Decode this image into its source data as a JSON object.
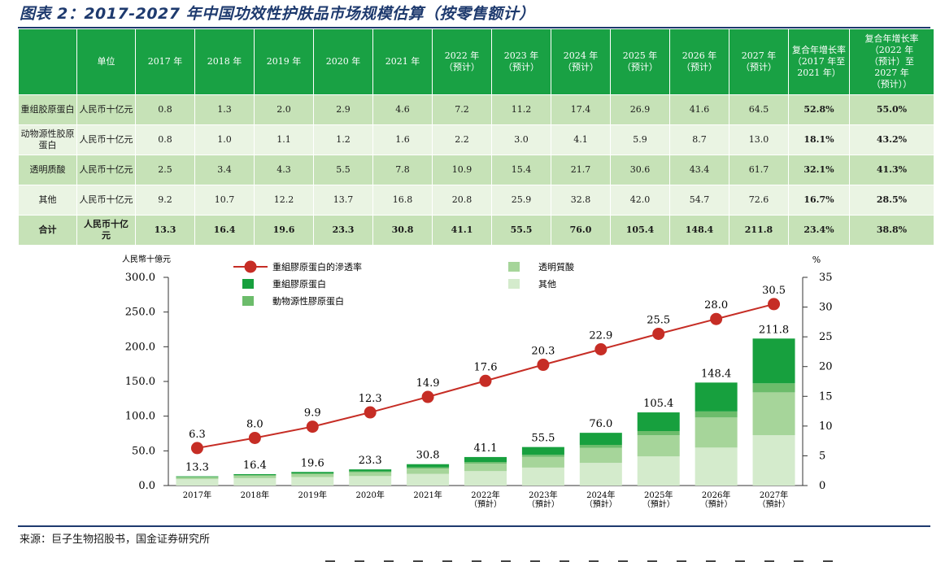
{
  "title": "图表 2：2017-2027 年中国功效性护肤品市场规模估算（按零售额计）",
  "table": {
    "headers": [
      "",
      "单位",
      "2017 年",
      "2018 年",
      "2019 年",
      "2020 年",
      "2021 年",
      "2022 年\n（预计）",
      "2023 年\n（预计）",
      "2024 年\n（预计）",
      "2025 年\n（预计）",
      "2026 年\n（预计）",
      "2027 年\n（预计）",
      "复合年增长率\n（2017 年至\n2021 年）",
      "复合年增长率\n（2022 年\n（预计）至\n2027 年\n（预计））"
    ],
    "rows": [
      {
        "name": "重组胶原蛋白",
        "unit": "人民币十亿元",
        "values": [
          "0.8",
          "1.3",
          "2.0",
          "2.9",
          "4.6",
          "7.2",
          "11.2",
          "17.4",
          "26.9",
          "41.6",
          "64.5"
        ],
        "cagr1": "52.8%",
        "cagr2": "55.0%"
      },
      {
        "name": "动物源性胶原\n蛋白",
        "unit": "人民币十亿元",
        "values": [
          "0.8",
          "1.0",
          "1.1",
          "1.2",
          "1.6",
          "2.2",
          "3.0",
          "4.1",
          "5.9",
          "8.7",
          "13.0"
        ],
        "cagr1": "18.1%",
        "cagr2": "43.2%"
      },
      {
        "name": "透明质酸",
        "unit": "人民币十亿元",
        "values": [
          "2.5",
          "3.4",
          "4.3",
          "5.5",
          "7.8",
          "10.9",
          "15.4",
          "21.7",
          "30.6",
          "43.4",
          "61.7"
        ],
        "cagr1": "32.1%",
        "cagr2": "41.3%"
      },
      {
        "name": "其他",
        "unit": "人民币十亿元",
        "values": [
          "9.2",
          "10.7",
          "12.2",
          "13.7",
          "16.8",
          "20.8",
          "25.9",
          "32.8",
          "42.0",
          "54.7",
          "72.6"
        ],
        "cagr1": "16.7%",
        "cagr2": "28.5%"
      },
      {
        "name": "合计",
        "unit": "人民币十亿\n元",
        "values": [
          "13.3",
          "16.4",
          "19.6",
          "23.3",
          "30.8",
          "41.1",
          "55.5",
          "76.0",
          "105.4",
          "148.4",
          "211.8"
        ],
        "cagr1": "23.4%",
        "cagr2": "38.8%"
      }
    ]
  },
  "chart_data": {
    "type": "bar",
    "stacked": true,
    "categories": [
      "2017年",
      "2018年",
      "2019年",
      "2020年",
      "2021年",
      "2022年\n（預計）",
      "2023年\n（預計）",
      "2024年\n（預計）",
      "2025年\n（預計）",
      "2026年\n（預計）",
      "2027年\n（預計）"
    ],
    "series": [
      {
        "name": "其他",
        "color": "#d4ebcc",
        "values": [
          9.2,
          10.7,
          12.2,
          13.7,
          16.8,
          20.8,
          25.9,
          32.8,
          42.0,
          54.7,
          72.6
        ]
      },
      {
        "name": "透明質酸",
        "color": "#a6d59a",
        "values": [
          2.5,
          3.4,
          4.3,
          5.5,
          7.8,
          10.9,
          15.4,
          21.7,
          30.6,
          43.4,
          61.7
        ]
      },
      {
        "name": "動物源性膠原蛋白",
        "color": "#6cbc6b",
        "values": [
          0.8,
          1.0,
          1.1,
          1.2,
          1.6,
          2.2,
          3.0,
          4.1,
          5.9,
          8.7,
          13.0
        ]
      },
      {
        "name": "重組膠原蛋白",
        "color": "#17a03e",
        "values": [
          0.8,
          1.3,
          2.0,
          2.9,
          4.6,
          7.2,
          11.2,
          17.4,
          26.9,
          41.6,
          64.5
        ]
      }
    ],
    "totals": [
      13.3,
      16.4,
      19.6,
      23.3,
      30.8,
      41.1,
      55.5,
      76.0,
      105.4,
      148.4,
      211.8
    ],
    "line": {
      "name": "重組膠原蛋白的滲透率",
      "color": "#c62d25",
      "axis": "right",
      "values": [
        6.3,
        8.0,
        9.9,
        12.3,
        14.9,
        17.6,
        20.3,
        22.9,
        25.5,
        28.0,
        30.5
      ]
    },
    "ylabel_left": "人民幣十億元",
    "ylabel_right": "%",
    "ylim_left": [
      0,
      300
    ],
    "yticks_left": [
      "0.0",
      "50.0",
      "100.0",
      "150.0",
      "200.0",
      "250.0",
      "300.0"
    ],
    "ylim_right": [
      0,
      35
    ],
    "yticks_right": [
      "0",
      "5",
      "10",
      "15",
      "20",
      "25",
      "30",
      "35"
    ],
    "legend": {
      "placement": "top-center",
      "items": [
        {
          "name": "重組膠原蛋白的滲透率",
          "kind": "line",
          "color": "#c62d25"
        },
        {
          "name": "透明質酸",
          "kind": "box",
          "color": "#a6d59a"
        },
        {
          "name": "重組膠原蛋白",
          "kind": "box",
          "color": "#17a03e"
        },
        {
          "name": "其他",
          "kind": "box",
          "color": "#d4ebcc"
        },
        {
          "name": "動物源性膠原蛋白",
          "kind": "box",
          "color": "#6cbc6b"
        }
      ]
    }
  },
  "source": "来源：巨子生物招股书，国金证券研究所"
}
